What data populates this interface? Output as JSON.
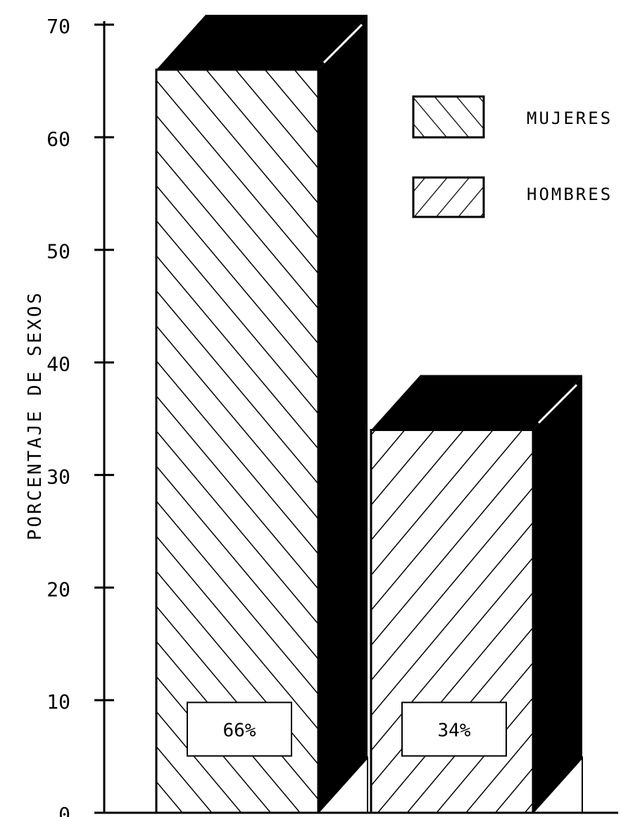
{
  "chart_data": {
    "type": "bar",
    "style": "3d-hatched",
    "categories": [
      "MUJERES",
      "HOMBRES"
    ],
    "values": [
      66,
      34
    ],
    "data_labels": [
      "66%",
      "34%"
    ],
    "ylabel": "PORCENTAJE DE SEXOS",
    "xlabel": "",
    "title": "",
    "ylim": [
      0,
      70
    ],
    "yticks": [
      0,
      10,
      20,
      30,
      40,
      50,
      60,
      70
    ],
    "grid": false,
    "legend": {
      "position": "top-right",
      "entries": [
        {
          "label": "MUJERES",
          "hatch": "backslash"
        },
        {
          "label": "HOMBRES",
          "hatch": "slash"
        }
      ]
    },
    "colors": {
      "ink": "#000000",
      "paper": "#ffffff"
    }
  }
}
